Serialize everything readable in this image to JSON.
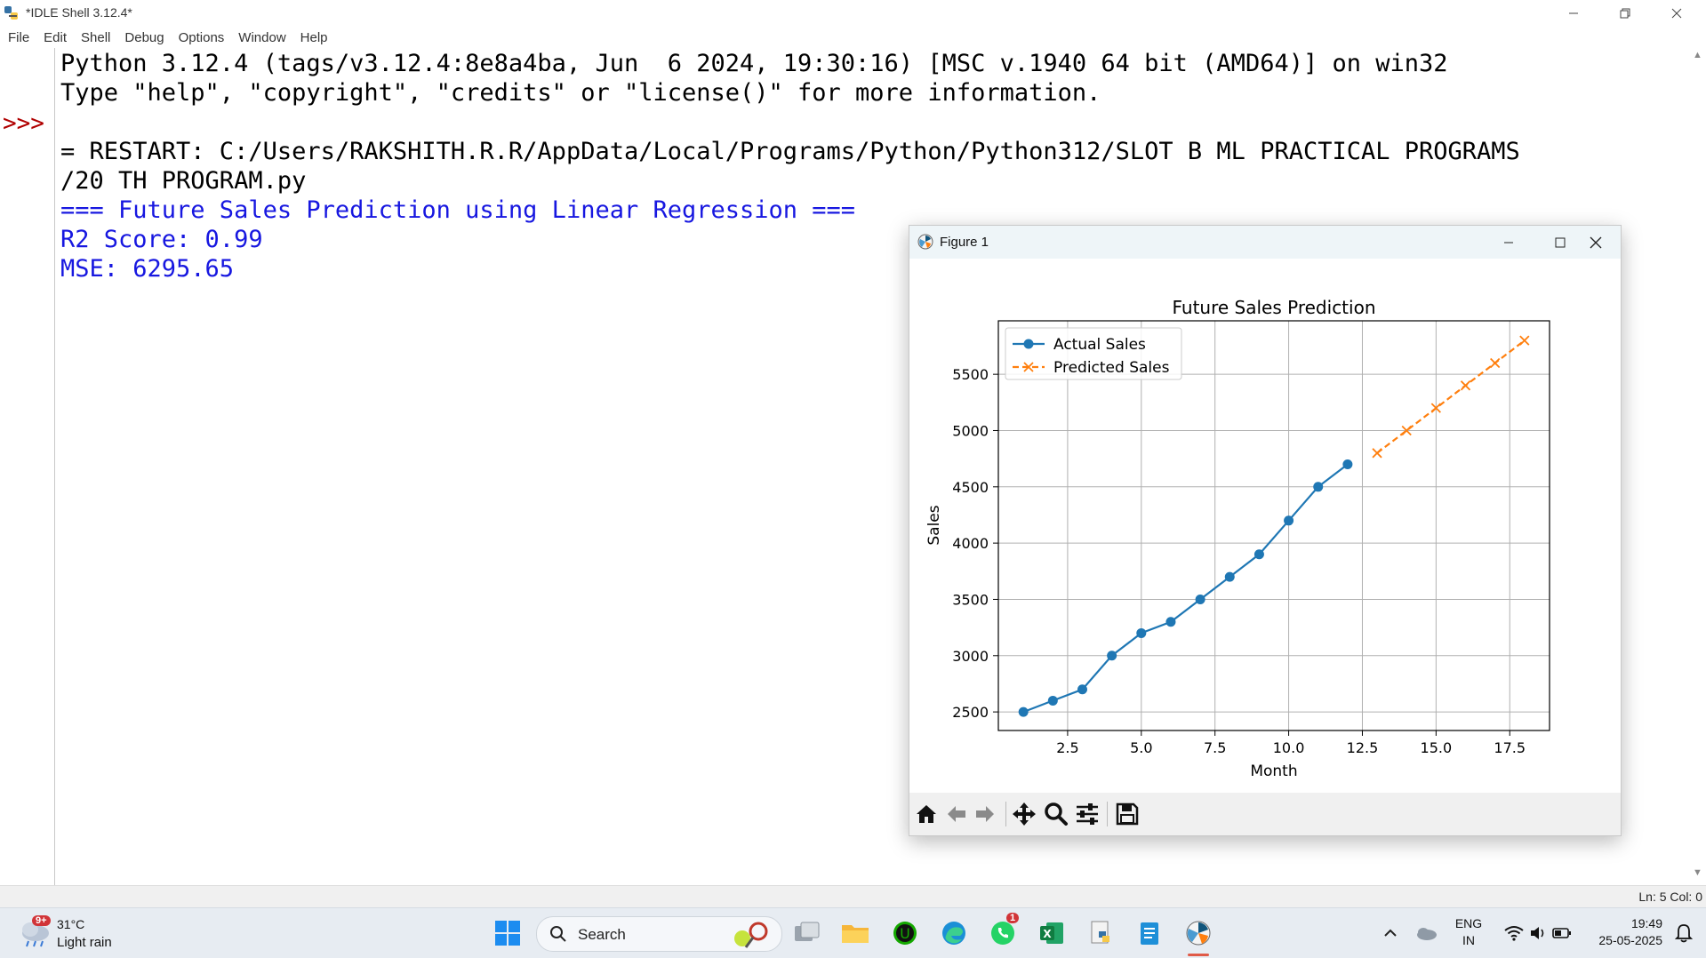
{
  "idle": {
    "title": "*IDLE Shell 3.12.4*",
    "menu": [
      "File",
      "Edit",
      "Shell",
      "Debug",
      "Options",
      "Window",
      "Help"
    ],
    "prompt": ">>>",
    "lines": [
      {
        "text": "Python 3.12.4 (tags/v3.12.4:8e8a4ba, Jun  6 2024, 19:30:16) [MSC v.1940 64 bit (AMD64)] on win32",
        "color": "black"
      },
      {
        "text": "Type \"help\", \"copyright\", \"credits\" or \"license()\" for more information.",
        "color": "black"
      },
      {
        "text": "",
        "color": "black"
      },
      {
        "text": "= RESTART: C:/Users/RAKSHITH.R.R/AppData/Local/Programs/Python/Python312/SLOT B ML PRACTICAL PROGRAMS",
        "color": "black"
      },
      {
        "text": "/20 TH PROGRAM.py",
        "color": "black"
      },
      {
        "text": "=== Future Sales Prediction using Linear Regression ===",
        "color": "blue"
      },
      {
        "text": "R2 Score: 0.99",
        "color": "blue"
      },
      {
        "text": "MSE: 6295.65",
        "color": "blue"
      }
    ],
    "status": "Ln: 5   Col: 0"
  },
  "figure": {
    "title": "Figure 1",
    "toolbar": [
      "home-icon",
      "back-arrow-icon",
      "forward-arrow-icon",
      "pan-move-icon",
      "zoom-magnifier-icon",
      "configure-subplots-icon",
      "save-floppy-icon"
    ]
  },
  "chart_data": {
    "type": "line",
    "title": "Future Sales Prediction",
    "xlabel": "Month",
    "ylabel": "Sales",
    "xlim": [
      0.15,
      18.85
    ],
    "ylim": [
      2335,
      5975
    ],
    "xticks": [
      2.5,
      5.0,
      7.5,
      10.0,
      12.5,
      15.0,
      17.5
    ],
    "xtick_labels": [
      "2.5",
      "5.0",
      "7.5",
      "10.0",
      "12.5",
      "15.0",
      "17.5"
    ],
    "yticks": [
      2500,
      3000,
      3500,
      4000,
      4500,
      5000,
      5500
    ],
    "ytick_labels": [
      "2500",
      "3000",
      "3500",
      "4000",
      "4500",
      "5000",
      "5500"
    ],
    "grid": true,
    "legend_position": "top-left",
    "series": [
      {
        "name": "Actual Sales",
        "color": "#1f77b4",
        "marker": "circle",
        "linestyle": "solid",
        "x": [
          1,
          2,
          3,
          4,
          5,
          6,
          7,
          8,
          9,
          10,
          11,
          12
        ],
        "y": [
          2500,
          2600,
          2700,
          3000,
          3200,
          3300,
          3500,
          3700,
          3900,
          4200,
          4500,
          4700
        ]
      },
      {
        "name": "Predicted Sales",
        "color": "#ff7f0e",
        "marker": "x",
        "linestyle": "dashed",
        "x": [
          13,
          14,
          15,
          16,
          17,
          18
        ],
        "y": [
          4800,
          5000,
          5200,
          5400,
          5600,
          5800
        ]
      }
    ]
  },
  "taskbar": {
    "weather_temp": "31°C",
    "weather_desc": "Light rain",
    "weather_badge": "9+",
    "search_label": "Search",
    "whatsapp_badge": "1",
    "lang_top": "ENG",
    "lang_bottom": "IN",
    "time": "19:49",
    "date": "25-05-2025"
  }
}
